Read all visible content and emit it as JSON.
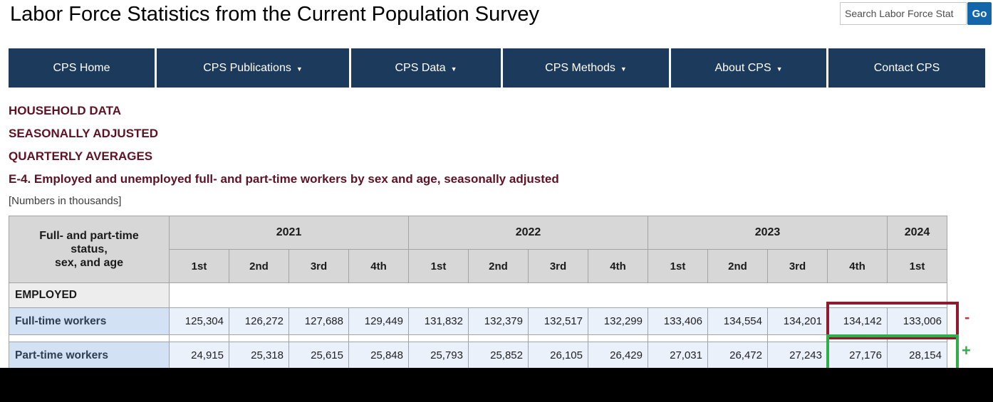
{
  "header": {
    "title": "Labor Force Statistics from the Current Population Survey",
    "search": {
      "value": "Search Labor Force Stat",
      "go_label": "Go"
    }
  },
  "nav": {
    "items": [
      {
        "label": "CPS Home",
        "has_dropdown": false
      },
      {
        "label": "CPS Publications",
        "has_dropdown": true
      },
      {
        "label": "CPS Data",
        "has_dropdown": true
      },
      {
        "label": "CPS Methods",
        "has_dropdown": true
      },
      {
        "label": "About CPS",
        "has_dropdown": true
      },
      {
        "label": "Contact CPS",
        "has_dropdown": false
      }
    ],
    "caret": "▼"
  },
  "headings": {
    "line1": "HOUSEHOLD DATA",
    "line2": "SEASONALLY ADJUSTED",
    "line3": "QUARTERLY AVERAGES",
    "table_title": "E-4. Employed and unemployed full- and part-time workers by sex and age, seasonally adjusted",
    "units_note": "[Numbers in thousands]"
  },
  "table": {
    "corner_lines": [
      "Full- and part-time",
      "status,",
      "sex, and age"
    ],
    "years": [
      {
        "label": "2021"
      },
      {
        "label": "2022"
      },
      {
        "label": "2023"
      },
      {
        "label": "2024"
      }
    ],
    "quarter_labels": [
      "1st",
      "2nd",
      "3rd",
      "4th",
      "1st",
      "2nd",
      "3rd",
      "4th",
      "1st",
      "2nd",
      "3rd",
      "4th",
      "1st"
    ],
    "section_label": "EMPLOYED",
    "rows": [
      {
        "label": "Full-time workers",
        "values": [
          "125,304",
          "126,272",
          "127,688",
          "129,449",
          "131,832",
          "132,379",
          "132,517",
          "132,299",
          "133,406",
          "134,554",
          "134,201",
          "134,142",
          "133,006"
        ]
      },
      {
        "label": "Part-time workers",
        "values": [
          "24,915",
          "25,318",
          "25,615",
          "25,848",
          "25,793",
          "25,852",
          "26,105",
          "26,429",
          "27,031",
          "26,472",
          "27,243",
          "27,176",
          "28,154"
        ]
      }
    ]
  },
  "annotations": {
    "minus": "-",
    "plus": "+",
    "decrease_box_color": "#8e1b2f",
    "increase_box_color": "#2fae49",
    "nav_color": "#1c3a5c",
    "heading_color": "#5e1223",
    "go_button_color": "#1266a9"
  }
}
